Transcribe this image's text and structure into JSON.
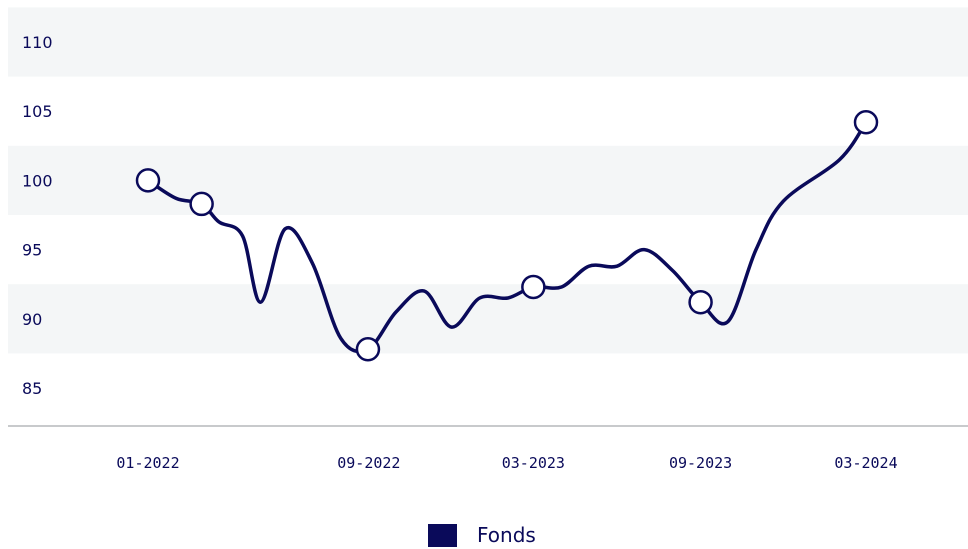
{
  "chart_data": {
    "type": "line",
    "title": "",
    "xlabel": "",
    "ylabel": "",
    "ylim": [
      83,
      112
    ],
    "yticks": [
      110,
      105,
      100,
      95,
      90,
      85
    ],
    "x_tick_labels": [
      {
        "date": "2022-01-01",
        "label": "01-2022"
      },
      {
        "date": "2022-09-01",
        "label": "09-2022"
      },
      {
        "date": "2023-03-01",
        "label": "03-2023"
      },
      {
        "date": "2023-09-01",
        "label": "09-2023"
      },
      {
        "date": "2024-03-01",
        "label": "03-2024"
      }
    ],
    "xlim": [
      "2021-12-01",
      "2024-04-10"
    ],
    "grid": "horizontal bands",
    "legend_position": "bottom-center",
    "series": [
      {
        "name": "Fonds",
        "color": "#0a0a5a",
        "points": [
          {
            "x": "2022-01-01",
            "y": 100.0
          },
          {
            "x": "2022-02-01",
            "y": 98.7
          },
          {
            "x": "2022-03-01",
            "y": 98.3
          },
          {
            "x": "2022-03-20",
            "y": 97.0
          },
          {
            "x": "2022-04-15",
            "y": 96.0
          },
          {
            "x": "2022-05-05",
            "y": 91.2
          },
          {
            "x": "2022-06-01",
            "y": 96.5
          },
          {
            "x": "2022-07-01",
            "y": 94.0
          },
          {
            "x": "2022-08-01",
            "y": 88.6
          },
          {
            "x": "2022-08-31",
            "y": 87.8
          },
          {
            "x": "2022-10-01",
            "y": 90.5
          },
          {
            "x": "2022-11-01",
            "y": 92.0
          },
          {
            "x": "2022-12-01",
            "y": 89.4
          },
          {
            "x": "2023-01-01",
            "y": 91.5
          },
          {
            "x": "2023-02-01",
            "y": 91.5
          },
          {
            "x": "2023-03-01",
            "y": 92.3
          },
          {
            "x": "2023-04-01",
            "y": 92.3
          },
          {
            "x": "2023-05-01",
            "y": 93.8
          },
          {
            "x": "2023-06-01",
            "y": 93.8
          },
          {
            "x": "2023-07-01",
            "y": 95.0
          },
          {
            "x": "2023-08-01",
            "y": 93.5
          },
          {
            "x": "2023-09-01",
            "y": 91.2
          },
          {
            "x": "2023-10-01",
            "y": 89.8
          },
          {
            "x": "2023-11-01",
            "y": 95.0
          },
          {
            "x": "2023-12-01",
            "y": 98.5
          },
          {
            "x": "2024-02-01",
            "y": 101.5
          },
          {
            "x": "2024-03-01",
            "y": 104.2
          }
        ],
        "markers": [
          {
            "x": "2022-01-01",
            "y": 100.0
          },
          {
            "x": "2022-03-01",
            "y": 98.3
          },
          {
            "x": "2022-08-31",
            "y": 87.8
          },
          {
            "x": "2023-03-01",
            "y": 92.3
          },
          {
            "x": "2023-09-01",
            "y": 91.2
          },
          {
            "x": "2024-03-01",
            "y": 104.2
          }
        ]
      }
    ]
  },
  "legend": {
    "label": "Fonds",
    "color": "#0a0a5a"
  },
  "colors": {
    "band": "#f4f6f7",
    "axis": "#c8cacc",
    "text": "#0a0a5a"
  }
}
